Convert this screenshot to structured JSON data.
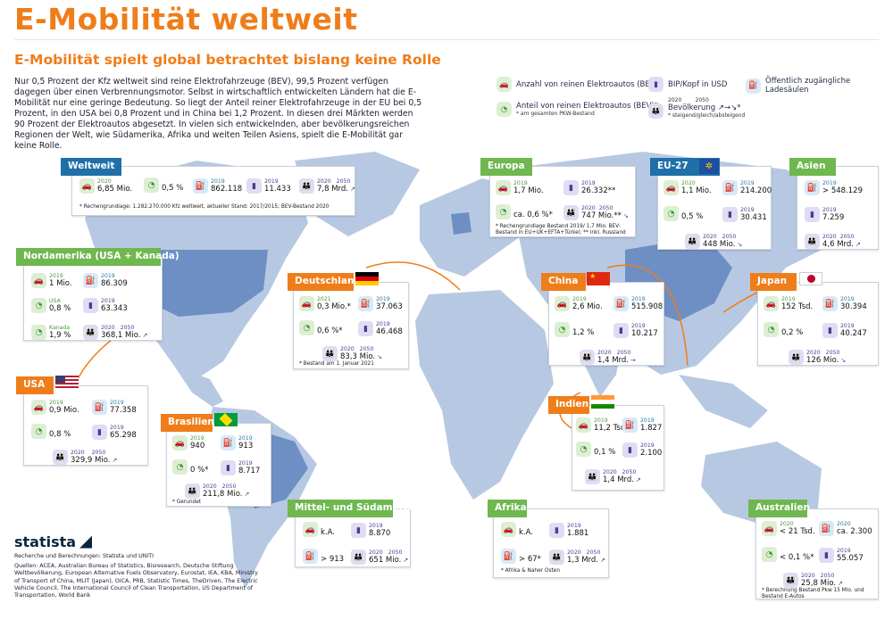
{
  "title": "E-Mobilität weltweit",
  "subtitle": "E-Mobilität spielt global betrachtet bislang keine Rolle",
  "intro": "Nur 0,5 Prozent der Kfz weltweit sind reine Elektrofahrzeuge (BEV), 99,5 Prozent verfügen dagegen über einen Verbrennungsmotor. Selbst in wirtschaftlich entwickelten Ländern hat die E-Mobilität nur eine geringe Bedeutung. So liegt der Anteil reiner Elektrofahrzeuge in der EU bei 0,5 Prozent, in den USA bei 0,8 Prozent und in China bei 1,2 Prozent. In diesen drei Märkten werden 90 Prozent der Elektroautos abgesetzt. In vielen sich entwickelnden, aber bevölkerungsreichen Regionen der Welt, wie Südamerika, Afrika und weiten Teilen Asiens, spielt die E-Mobilität gar keine Rolle.",
  "legend": {
    "bev": "Anzahl von reinen Elektroautos (BEV)",
    "gdp": "BIP/Kopf in USD",
    "charging": "Öffentlich zugängliche Ladesäulen",
    "share": "Anteil von reinen Elektroautos (BEV)*",
    "share_note": "* am gesamten PKW-Bestand",
    "pop": "Bevölkerung ↗→↘*",
    "pop_note": "* steigend/gleich/absteigend",
    "pop_y1": "2020",
    "pop_y2": "2050"
  },
  "chart_data": {
    "type": "table",
    "columns": [
      "region",
      "bev",
      "bev_share",
      "charging_points",
      "gdp_per_capita_usd",
      "population_2020",
      "population_trend_2050"
    ],
    "regions": [
      {
        "name": "Weltweit",
        "bev_year": "2020",
        "bev": "6,85 Mio.",
        "share": "0,5 %",
        "charging_year": "2019",
        "charging": "862.118",
        "gdp_year": "2019",
        "gdp": "11.433",
        "pop": "7,8 Mrd.",
        "trend": "↗",
        "note": "* Rechengrundlage: 1.282.270.000 Kfz weltweit, aktueller Stand: 2017/2015; BEV-Bestand 2020"
      },
      {
        "name": "Europa",
        "bev_year": "2019",
        "bev": "1,7 Mio.",
        "share": "ca. 0,6 %*",
        "gdp_year": "2019",
        "gdp": "26.332**",
        "pop": "747 Mio.**",
        "trend": "↘",
        "note": "* Rechengrundlage Bestand 2019/ 1,7 Mio. BEV-Bestand in EU+UK+EFTA+Türkei; ** inkl. Russland"
      },
      {
        "name": "EU-27",
        "bev_year": "2020",
        "bev": "1,1 Mio.",
        "share": "0,5 %",
        "charging_year": "2019",
        "charging": "214.200",
        "gdp_year": "2019",
        "gdp": "30.431",
        "pop": "448 Mio.",
        "trend": "↘"
      },
      {
        "name": "Asien",
        "charging_year": "2019",
        "charging": "> 548.129",
        "gdp_year": "2019",
        "gdp": "7.259",
        "pop": "4,6 Mrd.",
        "trend": "↗"
      },
      {
        "name": "Nordamerika (USA + Kanada)",
        "bev_year": "2019",
        "bev": "1 Mio.",
        "charging_year": "2019",
        "charging": "86.309",
        "share_usa_label": "USA",
        "share_usa": "0,8 %",
        "share_kanada_label": "Kanada",
        "share_kanada": "1,9 %",
        "gdp_year": "2019",
        "gdp": "63.343",
        "pop": "368,1 Mio.",
        "trend": "↗"
      },
      {
        "name": "Deutschland",
        "bev_year": "2021",
        "bev": "0,3 Mio.*",
        "share": "0,6 %*",
        "charging_year": "2019",
        "charging": "37.063",
        "gdp_year": "2019",
        "gdp": "46.468",
        "pop": "83,3 Mio.",
        "trend": "↘",
        "note": "* Bestand am 1. Januar 2021"
      },
      {
        "name": "China",
        "bev_year": "2019",
        "bev": "2,6 Mio.",
        "share": "1,2 %",
        "charging_year": "2019",
        "charging": "515.908",
        "gdp_year": "2019",
        "gdp": "10.217",
        "pop": "1,4 Mrd.",
        "trend": "→"
      },
      {
        "name": "Japan",
        "bev_year": "2019",
        "bev": "152 Tsd.",
        "share": "0,2 %",
        "charging_year": "2019",
        "charging": "30.394",
        "gdp_year": "2019",
        "gdp": "40.247",
        "pop": "126 Mio.",
        "trend": "↘"
      },
      {
        "name": "USA",
        "bev_year": "2019",
        "bev": "0,9 Mio.",
        "share": "0,8 %",
        "charging_year": "2019",
        "charging": "77.358",
        "gdp_year": "2019",
        "gdp": "65.298",
        "pop": "329,9 Mio.",
        "trend": "↗"
      },
      {
        "name": "Brasilien",
        "bev_year": "2019",
        "bev": "940",
        "share": "0 %*",
        "charging_year": "2019",
        "charging": "913",
        "gdp_year": "2019",
        "gdp": "8.717",
        "pop": "211,8 Mio.",
        "trend": "↗",
        "note": "* Gerundet"
      },
      {
        "name": "Indien",
        "bev_year": "2019",
        "bev": "11,2 Tsd.",
        "share": "0,1 %",
        "charging_year": "2019",
        "charging": "1.827",
        "gdp_year": "2019",
        "gdp": "2.100",
        "pop": "1,4 Mrd.",
        "trend": "↗"
      },
      {
        "name": "Mittel- und Südamerika",
        "bev": "k.A.",
        "charging": "> 913",
        "gdp_year": "2019",
        "gdp": "8.870",
        "pop": "651 Mio.",
        "trend": "↗"
      },
      {
        "name": "Afrika",
        "bev": "k.A.",
        "charging": "> 67*",
        "gdp_year": "2019",
        "gdp": "1.881",
        "pop": "1,3 Mrd.",
        "trend": "↗",
        "note": "* Afrika & Naher Osten"
      },
      {
        "name": "Australien",
        "bev_year": "2020",
        "bev": "< 21 Tsd.",
        "share": "< 0,1 %*",
        "charging_year": "2020",
        "charging": "ca. 2.300",
        "gdp_year": "2019",
        "gdp": "55.057",
        "pop": "25,8 Mio.",
        "trend": "↗",
        "note": "* Berechnung Bestand Pkw 15 Mio. und Bestand E-Autos"
      }
    ]
  },
  "years": {
    "y2020": "2020",
    "y2050": "2050"
  },
  "footer": {
    "logo": "statista",
    "credit": "Recherche und Berechnungen: Statista und UNITI",
    "sources": "Quellen: ACEA, Australian Bureau of Statistics, Bisresearch, Deutsche Stiftung Weltbevölkerung, European Alternative Fuels Observatory, Eurostat, IEA, KBA, Ministry of Transport of China, MLIT (Japan), OICA, PRB, Statistic Times, TheDriven, The Electric Vehicle Council, The International Council of Clean Transportation, US Department of Transportation, World Bank"
  },
  "colors": {
    "orange": "#ef7d1a",
    "green": "#6fb74f",
    "blue": "#1f6fa8",
    "map": "#b7c9e2",
    "map_dark": "#8ba7cf"
  }
}
